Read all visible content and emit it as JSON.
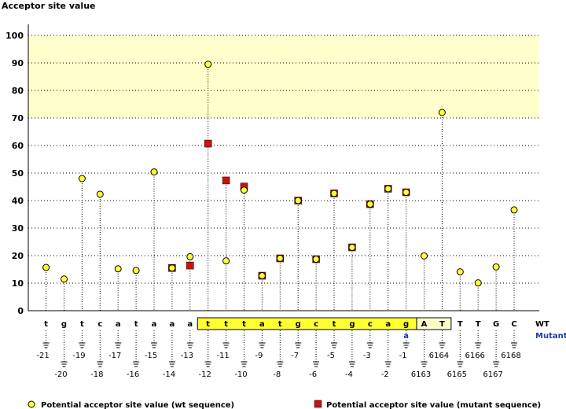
{
  "chart_data": {
    "type": "scatter",
    "ylabel": "Acceptor site value",
    "ylim": [
      0,
      100
    ],
    "yticks": [
      0,
      10,
      20,
      30,
      40,
      50,
      60,
      70,
      80,
      90,
      100
    ],
    "y_band_highlight": [
      70,
      100
    ],
    "grid": true,
    "sequence_label_wt": "WT",
    "sequence_label_mutant": "Mutant",
    "positions": [
      {
        "base": "t",
        "pos": "-21"
      },
      {
        "base": "g",
        "pos": "-20"
      },
      {
        "base": "t",
        "pos": "-19"
      },
      {
        "base": "c",
        "pos": "-18"
      },
      {
        "base": "a",
        "pos": "-17"
      },
      {
        "base": "t",
        "pos": "-16"
      },
      {
        "base": "a",
        "pos": "-15"
      },
      {
        "base": "a",
        "pos": "-14"
      },
      {
        "base": "a",
        "pos": "-13"
      },
      {
        "base": "t",
        "pos": "-12"
      },
      {
        "base": "t",
        "pos": "-11"
      },
      {
        "base": "t",
        "pos": "-10"
      },
      {
        "base": "a",
        "pos": "-9"
      },
      {
        "base": "t",
        "pos": "-8"
      },
      {
        "base": "g",
        "pos": "-7"
      },
      {
        "base": "c",
        "pos": "-6"
      },
      {
        "base": "t",
        "pos": "-5"
      },
      {
        "base": "g",
        "pos": "-4"
      },
      {
        "base": "c",
        "pos": "-3"
      },
      {
        "base": "a",
        "pos": "-2"
      },
      {
        "base": "g",
        "pos": "-1",
        "mutant_base": "a"
      },
      {
        "base": "A",
        "pos": "6163"
      },
      {
        "base": "T",
        "pos": "6164"
      },
      {
        "base": "T",
        "pos": "6165"
      },
      {
        "base": "T",
        "pos": "6166"
      },
      {
        "base": "G",
        "pos": "6167"
      },
      {
        "base": "C",
        "pos": "6168"
      }
    ],
    "series": [
      {
        "name": "Potential acceptor site value (wt sequence)",
        "color": "#ffff33",
        "marker": "circle",
        "values": [
          15.7,
          11.5,
          48,
          42.3,
          15.2,
          14.6,
          50.4,
          15.5,
          19.6,
          89.5,
          18.1,
          43.8,
          12.7,
          19,
          40,
          18.7,
          42.6,
          23,
          38.7,
          44.3,
          43,
          19.9,
          72,
          14.1,
          10.1,
          15.9,
          36.6
        ]
      },
      {
        "name": "Potential acceptor site value (mutant sequence)",
        "color": "#d01010",
        "marker": "square",
        "values": [
          null,
          null,
          null,
          null,
          null,
          null,
          null,
          15.5,
          16.4,
          60.7,
          47.3,
          45.1,
          12.7,
          19,
          40,
          18.7,
          42.6,
          23,
          38.7,
          44.3,
          43,
          null,
          null,
          null,
          null,
          null,
          null
        ]
      }
    ],
    "highlight_box": {
      "from": "-12",
      "to": "-1",
      "color": "#ffff33"
    },
    "exon_box": {
      "from": "6163",
      "to": "6164",
      "color": "#ffffcc"
    }
  }
}
